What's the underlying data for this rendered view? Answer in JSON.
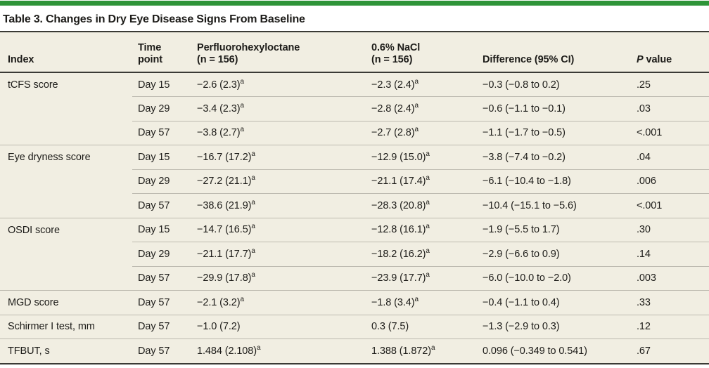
{
  "title": "Table 3. Changes in Dry Eye Disease Signs From Baseline",
  "colors": {
    "accent": "#2e9438",
    "table_bg": "#f1eee2",
    "divider": "#bdbab0",
    "rule": "#3a3a35",
    "text": "#1d1c19"
  },
  "table": {
    "header": {
      "index": "Index",
      "time": "Time\npoint",
      "pfh": "Perfluorohexyloctane\n(n = 156)",
      "nacl": "0.6% NaCl\n(n = 156)",
      "diff": "Difference (95% CI)",
      "p_italic": "P",
      "p_rest": " value"
    },
    "rows": [
      {
        "index": "tCFS score",
        "time": "Day 15",
        "pfh": "−2.6 (2.3)",
        "pfh_sup": "a",
        "nacl": "−2.3 (2.4)",
        "nacl_sup": "a",
        "diff": "−0.3 (−0.8 to 0.2)",
        "p": ".25"
      },
      {
        "index": "",
        "time": "Day 29",
        "pfh": "−3.4 (2.3)",
        "pfh_sup": "a",
        "nacl": "−2.8 (2.4)",
        "nacl_sup": "a",
        "diff": "−0.6 (−1.1 to −0.1)",
        "p": ".03"
      },
      {
        "index": "",
        "time": "Day 57",
        "pfh": "−3.8 (2.7)",
        "pfh_sup": "a",
        "nacl": "−2.7 (2.8)",
        "nacl_sup": "a",
        "diff": "−1.1 (−1.7 to −0.5)",
        "p": "<.001"
      },
      {
        "index": "Eye dryness score",
        "time": "Day 15",
        "pfh": "−16.7 (17.2)",
        "pfh_sup": "a",
        "nacl": "−12.9 (15.0)",
        "nacl_sup": "a",
        "diff": "−3.8 (−7.4 to −0.2)",
        "p": ".04"
      },
      {
        "index": "",
        "time": "Day 29",
        "pfh": "−27.2 (21.1)",
        "pfh_sup": "a",
        "nacl": "−21.1 (17.4)",
        "nacl_sup": "a",
        "diff": "−6.1 (−10.4 to −1.8)",
        "p": ".006"
      },
      {
        "index": "",
        "time": "Day 57",
        "pfh": "−38.6 (21.9)",
        "pfh_sup": "a",
        "nacl": "−28.3 (20.8)",
        "nacl_sup": "a",
        "diff": "−10.4 (−15.1 to −5.6)",
        "p": "<.001"
      },
      {
        "index": "OSDI score",
        "time": "Day 15",
        "pfh": "−14.7 (16.5)",
        "pfh_sup": "a",
        "nacl": "−12.8 (16.1)",
        "nacl_sup": "a",
        "diff": "−1.9 (−5.5 to 1.7)",
        "p": ".30"
      },
      {
        "index": "",
        "time": "Day 29",
        "pfh": "−21.1 (17.7)",
        "pfh_sup": "a",
        "nacl": "−18.2 (16.2)",
        "nacl_sup": "a",
        "diff": "−2.9 (−6.6 to 0.9)",
        "p": ".14"
      },
      {
        "index": "",
        "time": "Day 57",
        "pfh": "−29.9 (17.8)",
        "pfh_sup": "a",
        "nacl": "−23.9 (17.7)",
        "nacl_sup": "a",
        "diff": "−6.0 (−10.0 to −2.0)",
        "p": ".003"
      },
      {
        "index": "MGD score",
        "time": "Day 57",
        "pfh": "−2.1 (3.2)",
        "pfh_sup": "a",
        "nacl": "−1.8 (3.4)",
        "nacl_sup": "a",
        "diff": "−0.4 (−1.1 to 0.4)",
        "p": ".33"
      },
      {
        "index": "Schirmer I test, mm",
        "time": "Day 57",
        "pfh": "−1.0 (7.2)",
        "pfh_sup": "",
        "nacl": "0.3 (7.5)",
        "nacl_sup": "",
        "diff": "−1.3 (−2.9 to 0.3)",
        "p": ".12"
      },
      {
        "index": "TFBUT, s",
        "time": "Day 57",
        "pfh": "1.484 (2.108)",
        "pfh_sup": "a",
        "nacl": "1.388 (1.872)",
        "nacl_sup": "a",
        "diff": "0.096 (−0.349 to 0.541)",
        "p": ".67"
      }
    ]
  }
}
